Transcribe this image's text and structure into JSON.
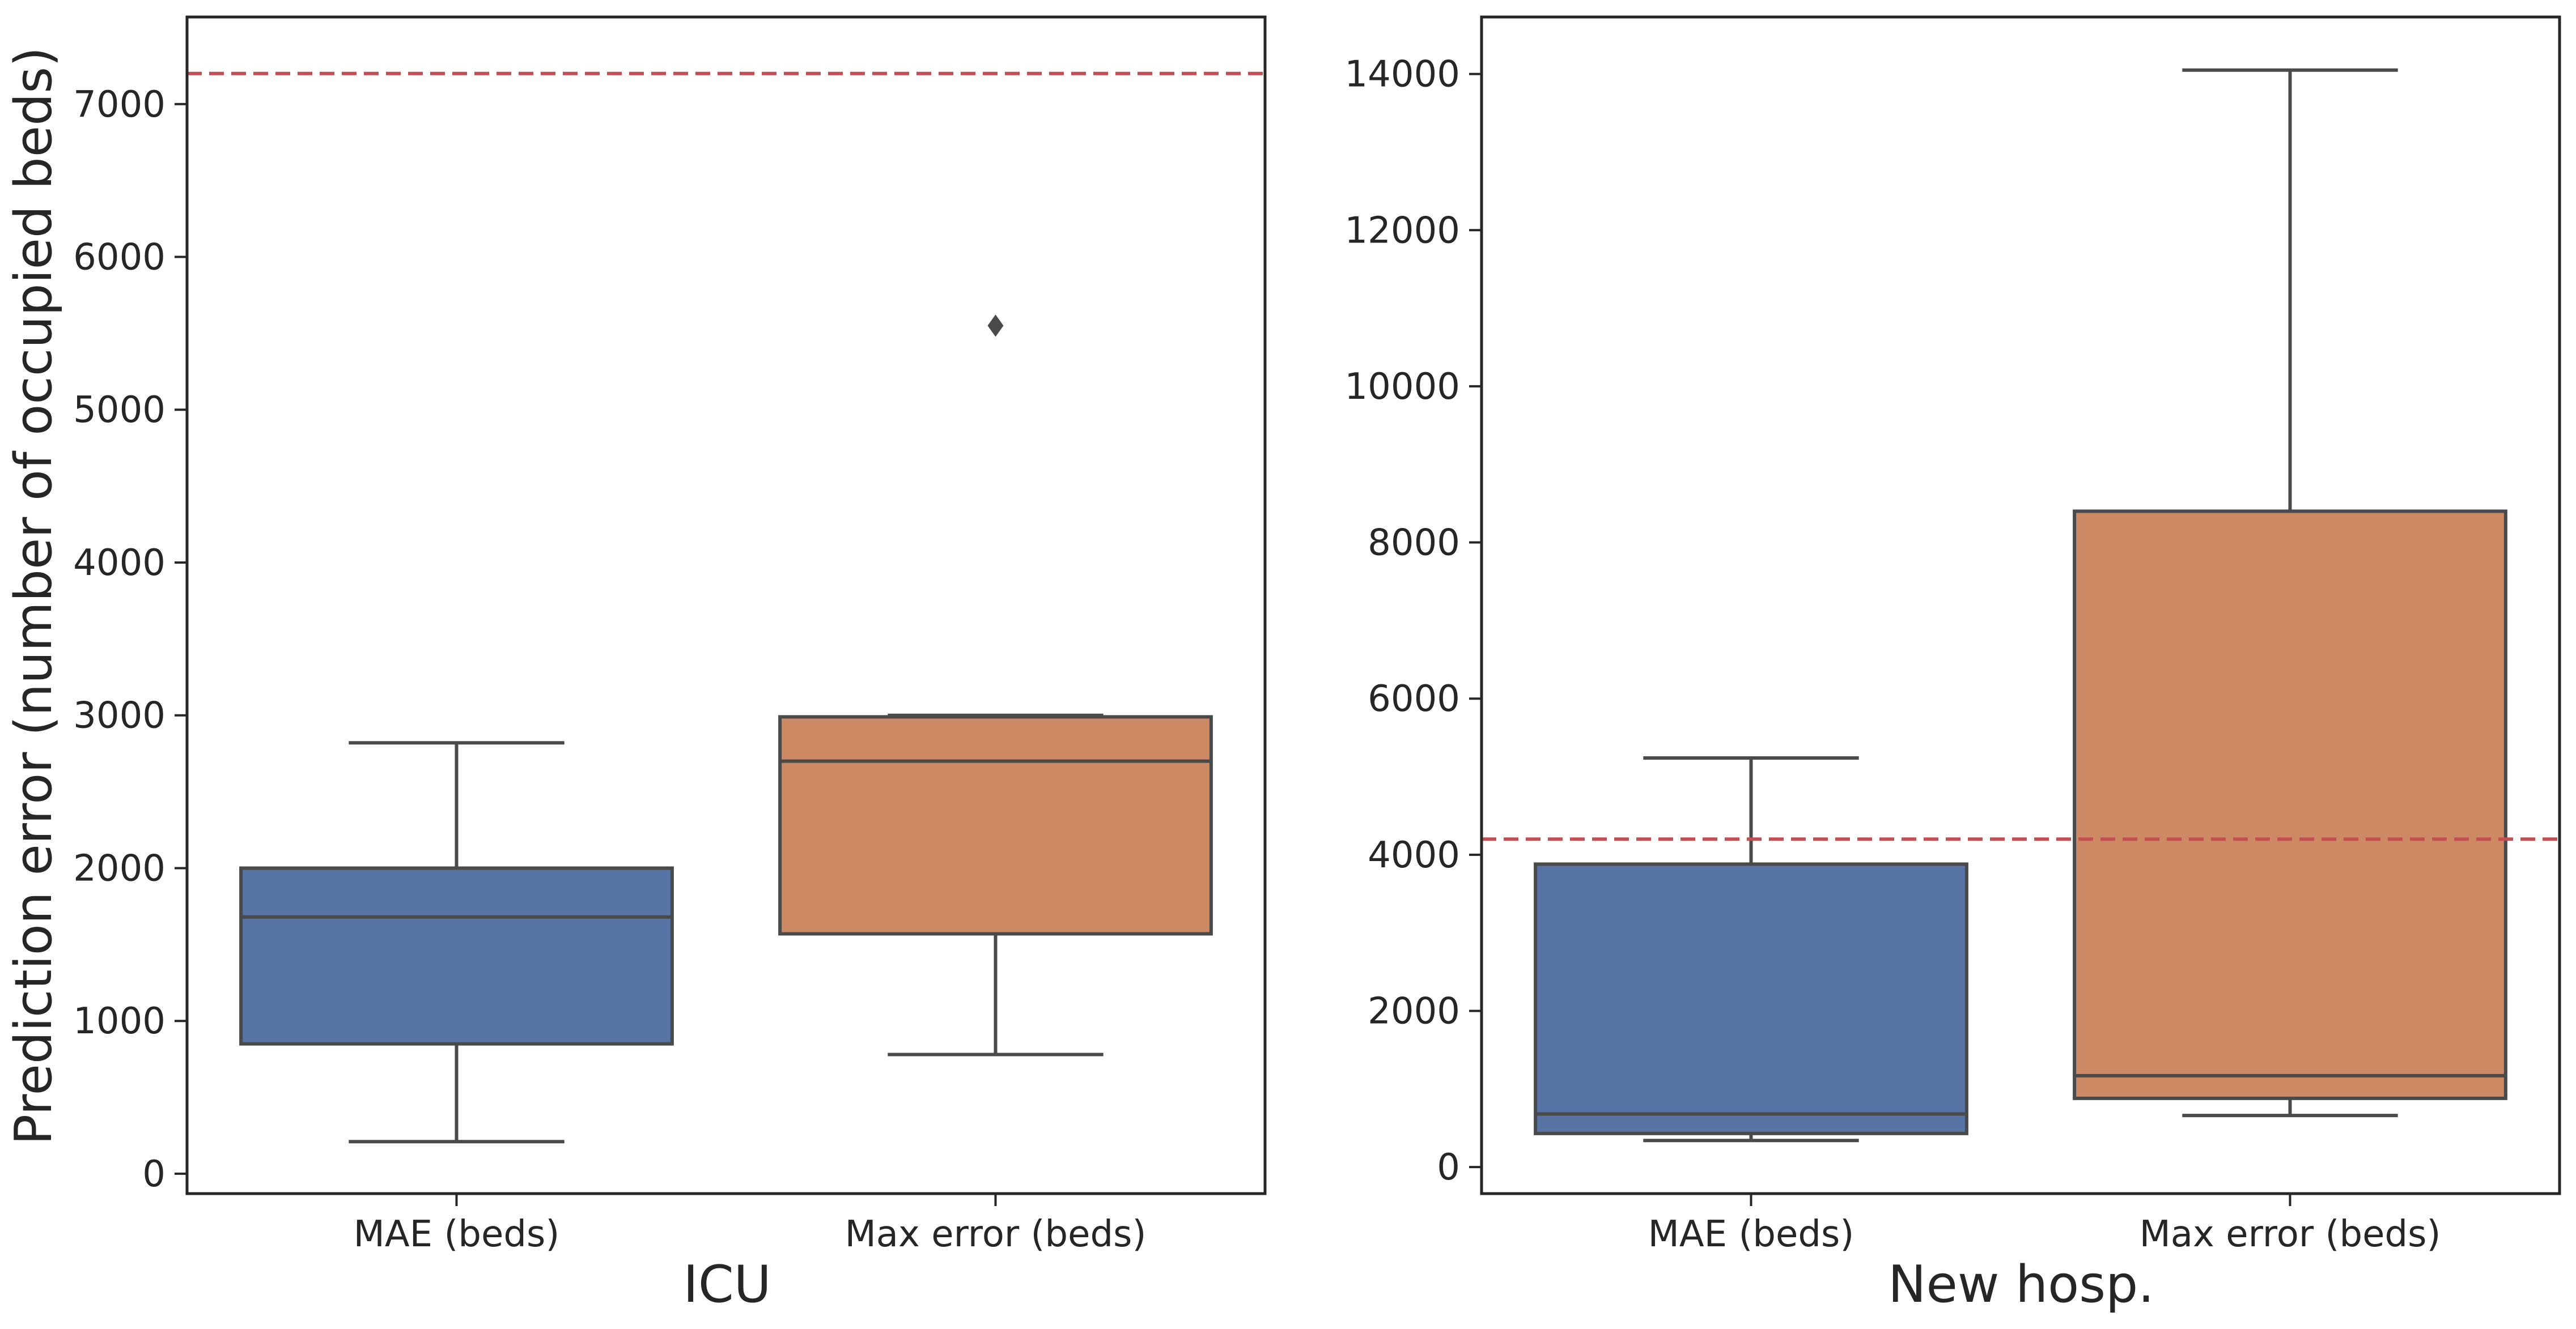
{
  "chart_data": [
    {
      "type": "box",
      "title": "",
      "xlabel": "ICU",
      "ylabel": "Prediction error (number of occupied beds)",
      "categories": [
        "MAE (beds)",
        "Max error (beds)"
      ],
      "ylim": [
        -130,
        7570
      ],
      "yticks": [
        0,
        1000,
        2000,
        3000,
        4000,
        5000,
        6000,
        7000
      ],
      "reference_line": 7200,
      "boxes": [
        {
          "name": "MAE (beds)",
          "whisker_low": 210,
          "q1": 850,
          "median": 1680,
          "q3": 2000,
          "whisker_high": 2820,
          "outliers": [],
          "color": "#5874a5"
        },
        {
          "name": "Max error (beds)",
          "whisker_low": 780,
          "q1": 1570,
          "median": 2700,
          "q3": 2990,
          "whisker_high": 3000,
          "outliers": [
            5550
          ],
          "color": "#cc8963"
        }
      ]
    },
    {
      "type": "box",
      "title": "",
      "xlabel": "New hosp.",
      "ylabel": "",
      "categories": [
        "MAE (beds)",
        "Max error (beds)"
      ],
      "ylim": [
        -340,
        14730
      ],
      "yticks": [
        0,
        2000,
        4000,
        6000,
        8000,
        10000,
        12000,
        14000
      ],
      "reference_line": 4200,
      "boxes": [
        {
          "name": "MAE (beds)",
          "whisker_low": 340,
          "q1": 430,
          "median": 680,
          "q3": 3880,
          "whisker_high": 5240,
          "outliers": [],
          "color": "#5874a5"
        },
        {
          "name": "Max error (beds)",
          "whisker_low": 660,
          "q1": 880,
          "median": 1170,
          "q3": 8400,
          "whisker_high": 14050,
          "outliers": [],
          "color": "#cc8963"
        }
      ]
    }
  ],
  "colors": {
    "axis": "#262626",
    "box_edge": "#4a4a4a",
    "reference_line": "#c44e52"
  }
}
